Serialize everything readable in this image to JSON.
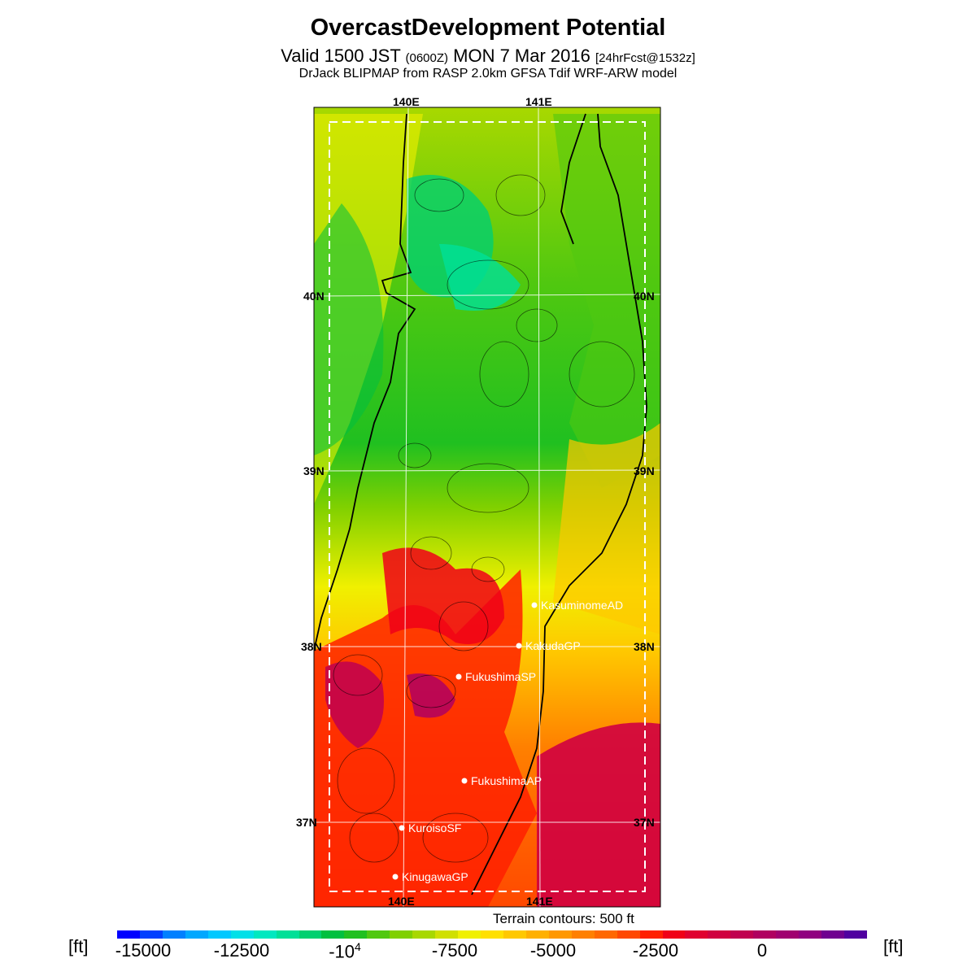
{
  "header": {
    "title": "OvercastDevelopment Potential",
    "valid_prefix": "Valid 1500 JST",
    "valid_utc": "(0600Z)",
    "valid_date": "MON 7 Mar 2016",
    "forecast": "[24hrFcst@1532z]",
    "model": "DrJack BLIPMAP from RASP 2.0km GFSA Tdif WRF-ARW model"
  },
  "map": {
    "lon_labels": {
      "top_140": "140E",
      "top_141": "141E",
      "bottom_140": "140E",
      "bottom_141": "141E"
    },
    "lat_labels": [
      "40N",
      "39N",
      "38N",
      "37N"
    ],
    "sites": [
      "KasuminomeAD",
      "KakudaGP",
      "FukushimaSP",
      "FukushimaAP",
      "KuroisoSF",
      "KinugawaGP"
    ],
    "colors": {
      "coast": "#000000",
      "grid": "#ffffff",
      "site_marker": "#ffffff"
    }
  },
  "legend": {
    "terrain_note": "Terrain contours: 500 ft",
    "unit": "[ft]",
    "tick_labels": [
      "-15000",
      "-12500",
      "-10",
      "-7500",
      "-5000",
      "-2500",
      "0"
    ],
    "tick_10_exp": "4",
    "colors": [
      "#0000ff",
      "#0040ff",
      "#0080ff",
      "#00a8ff",
      "#00c8ff",
      "#00e0e8",
      "#00e8c0",
      "#00e098",
      "#00d070",
      "#00c040",
      "#20c020",
      "#50c810",
      "#80d000",
      "#a8d800",
      "#d0e000",
      "#f0f000",
      "#ffe000",
      "#ffc800",
      "#ffb000",
      "#ff9800",
      "#ff8000",
      "#ff6800",
      "#ff4800",
      "#ff2000",
      "#f00018",
      "#e00030",
      "#d00040",
      "#c00050",
      "#b00060",
      "#a00070",
      "#900080",
      "#700090",
      "#5000a0"
    ]
  }
}
